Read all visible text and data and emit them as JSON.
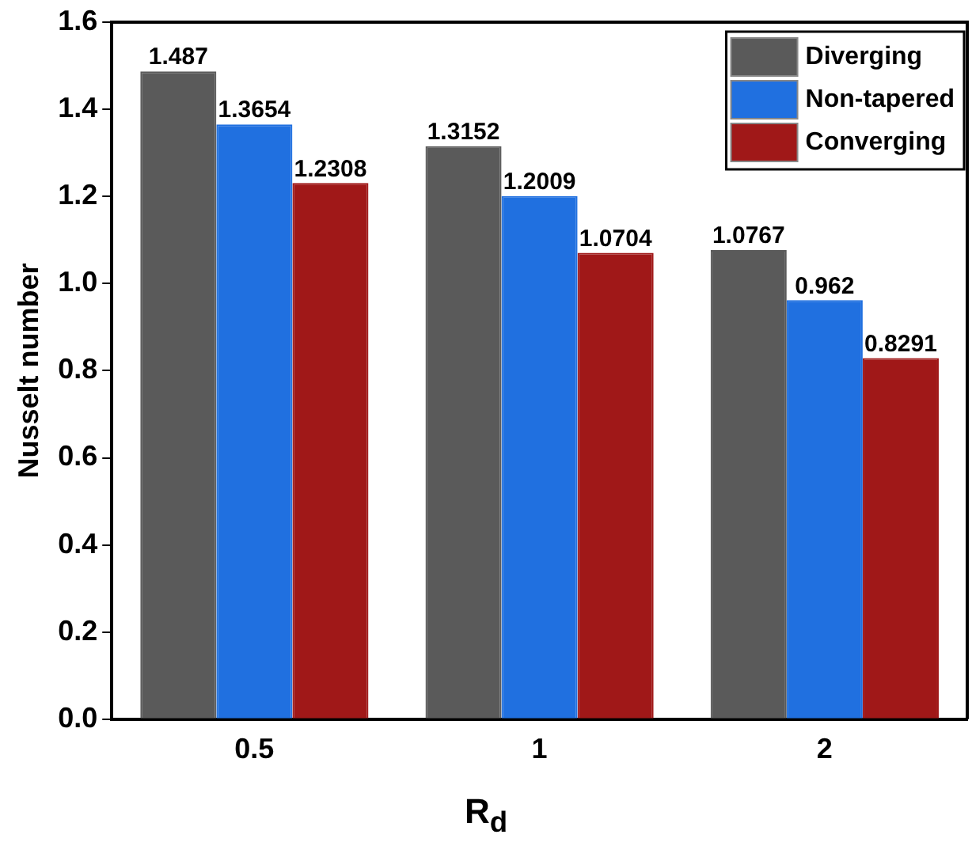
{
  "chart_data": {
    "type": "bar",
    "xlabel": "R$_{d}$",
    "ylabel": "Nusselt number",
    "categories": [
      "0.5",
      "1",
      "2"
    ],
    "series": [
      {
        "name": "Diverging",
        "color": "#5a5a5a",
        "values": [
          1.487,
          1.3152,
          1.0767
        ]
      },
      {
        "name": "Non-tapered",
        "color": "#2070e0",
        "values": [
          1.3654,
          1.2009,
          0.962
        ]
      },
      {
        "name": "Converging",
        "color": "#a01818",
        "values": [
          1.2308,
          1.0704,
          0.8291
        ]
      }
    ],
    "ylim": [
      0,
      1.6
    ],
    "yticks": [
      {
        "value": 0,
        "label": "0.0"
      },
      {
        "value": 0.2,
        "label": "0.2"
      },
      {
        "value": 0.4,
        "label": "0.4"
      },
      {
        "value": 0.6,
        "label": "0.6"
      },
      {
        "value": 0.8,
        "label": "0.8"
      },
      {
        "value": 1,
        "label": "1.0"
      },
      {
        "value": 1.2,
        "label": "1.2"
      },
      {
        "value": 1.4,
        "label": "1.4"
      },
      {
        "value": 1.6,
        "label": "1.6"
      }
    ],
    "grid": false,
    "legend": "top right",
    "data_labels": true
  }
}
